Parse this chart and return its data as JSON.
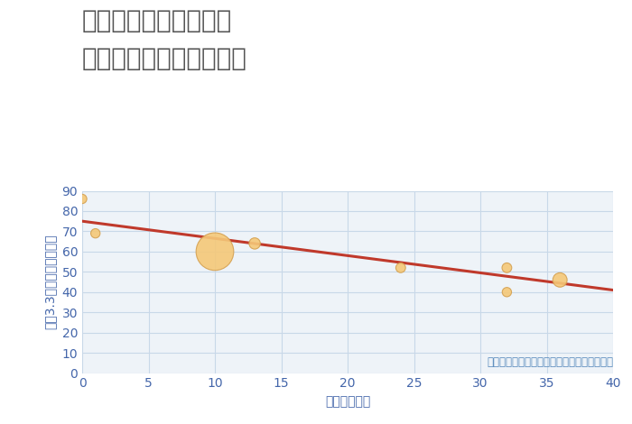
{
  "title_line1": "愛知県高浜市本郷町の",
  "title_line2": "築年数別中古戸建て価格",
  "xlabel": "築年数（年）",
  "ylabel": "坪（3.3㎡）単価（万円）",
  "scatter_x": [
    0,
    1,
    10,
    13,
    24,
    32,
    32,
    36
  ],
  "scatter_y": [
    86,
    69,
    60,
    64,
    52,
    52,
    40,
    46
  ],
  "scatter_sizes": [
    55,
    55,
    900,
    80,
    60,
    60,
    55,
    130
  ],
  "scatter_color": "#F5C878",
  "scatter_edge_color": "#D4A050",
  "trend_x": [
    0,
    40
  ],
  "trend_y": [
    75,
    41
  ],
  "trend_color": "#C0392B",
  "trend_linewidth": 2.2,
  "xlim": [
    0,
    40
  ],
  "ylim": [
    0,
    90
  ],
  "xticks": [
    0,
    5,
    10,
    15,
    20,
    25,
    30,
    35,
    40
  ],
  "yticks": [
    0,
    10,
    20,
    30,
    40,
    50,
    60,
    70,
    80,
    90
  ],
  "grid_color": "#c8d8e8",
  "plot_bg_color": "#eef3f8",
  "fig_bg_color": "#ffffff",
  "tick_color": "#4466aa",
  "axis_label_color": "#4466aa",
  "annotation": "円の大きさは、取引のあった物件面積を示す",
  "annotation_color": "#5588bb",
  "annotation_fontsize": 8.5,
  "title_fontsize": 20,
  "title_color": "#555555",
  "axis_label_fontsize": 10,
  "tick_fontsize": 10
}
